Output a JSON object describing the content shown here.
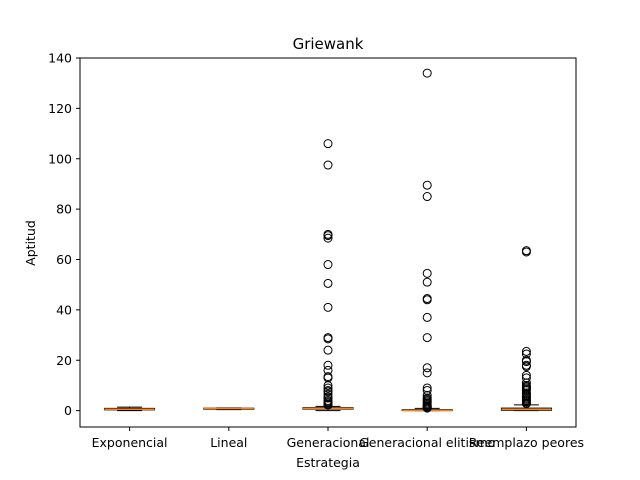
{
  "chart_data": {
    "type": "box",
    "title": "Griewank",
    "xlabel": "Estrategia",
    "ylabel": "Aptitud",
    "ylim": [
      -6.5,
      140
    ],
    "yticks": [
      0,
      20,
      40,
      60,
      80,
      100,
      120,
      140
    ],
    "grid": false,
    "categories": [
      "Exponencial",
      "Lineal",
      "Generacional",
      "Generacional elitismo",
      "Reemplazo peores"
    ],
    "boxes": [
      {
        "q1": 0.3,
        "median": 0.55,
        "q3": 0.9,
        "whisker_low": 0.0,
        "whisker_high": 1.4,
        "outliers": []
      },
      {
        "q1": 0.55,
        "median": 0.85,
        "q3": 1.0,
        "whisker_low": 0.4,
        "whisker_high": 1.1,
        "outliers": []
      },
      {
        "q1": 0.6,
        "median": 0.9,
        "q3": 1.2,
        "whisker_low": 0.0,
        "whisker_high": 1.7,
        "outliers": [
          106,
          97.5,
          70,
          69.5,
          68.5,
          58,
          50.5,
          41,
          29,
          28.5,
          24,
          18,
          16,
          13.5,
          13,
          10,
          9,
          8,
          7.5,
          6.5,
          5.5,
          5,
          4,
          3.5,
          3,
          2.5,
          2.2
        ]
      },
      {
        "q1": 0.0,
        "median": 0.1,
        "q3": 0.4,
        "whisker_low": 0.0,
        "whisker_high": 0.9,
        "outliers": [
          134,
          89.5,
          85,
          54.5,
          51,
          44.5,
          44,
          37,
          29,
          17,
          15,
          9,
          8,
          6,
          5,
          4.5,
          4,
          3.5,
          3,
          2.5,
          2,
          1.7,
          1.4,
          1.2,
          1
        ]
      },
      {
        "q1": 0.1,
        "median": 0.45,
        "q3": 1.0,
        "whisker_low": 0.0,
        "whisker_high": 2.3,
        "outliers": [
          63.5,
          63,
          23.5,
          22.5,
          20,
          19.5,
          18,
          17.5,
          14,
          13,
          11,
          10,
          9.5,
          9,
          8.5,
          8,
          7,
          6.5,
          6,
          5.5,
          5,
          4.5,
          4,
          3.5,
          3,
          2.8
        ]
      }
    ],
    "colors": {
      "box": "#000000",
      "median": "#ff7f0e",
      "outlier": "#000000"
    }
  }
}
